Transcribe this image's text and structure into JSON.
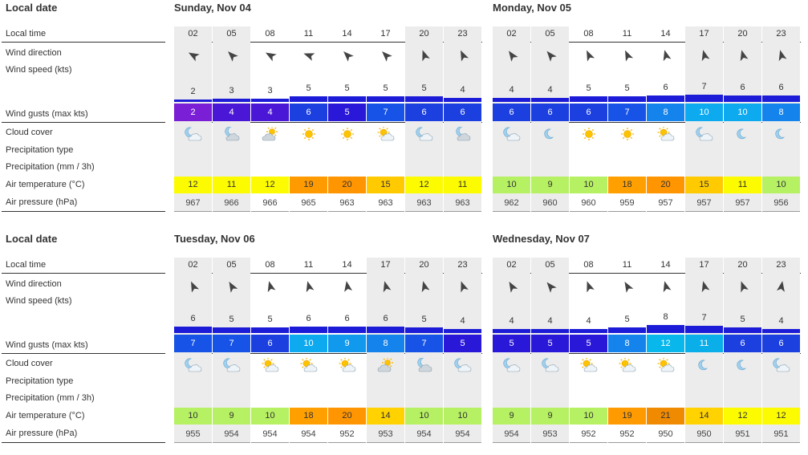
{
  "row_labels": {
    "local_date": "Local date",
    "local_time": "Local time",
    "wind_direction": "Wind direction",
    "wind_speed": "Wind speed  (kts)",
    "wind_gusts": "Wind gusts  (max kts)",
    "cloud_cover": "Cloud cover",
    "precipitation_type": "Precipitation type",
    "precipitation": "Precipitation  (mm / 3h)",
    "air_temperature": "Air temperature  (°C)",
    "air_pressure": "Air pressure  (hPa)"
  },
  "colors": {
    "gust_scale": {
      "2": "#7b1fd6",
      "4": "#4a17d6",
      "5": "#2a18d8",
      "6": "#1c3fe0",
      "7": "#1653e6",
      "8": "#1583ec",
      "9": "#1199ee",
      "10": "#0eaaf0",
      "11": "#0aaee8",
      "12": "#08b8ec"
    },
    "temp_scale": {
      "9": "#b6f063",
      "10": "#b6f063",
      "11": "#fcfb00",
      "12": "#fcfb00",
      "14": "#ffd200",
      "15": "#ffcb00",
      "18": "#ffa000",
      "19": "#ff9a00",
      "20": "#ff9500",
      "21": "#f08a00"
    },
    "wind_bar": "#1c1cd8",
    "grey_column": "#ececec"
  },
  "days": [
    {
      "title": "Sunday, Nov 04",
      "times": [
        "02",
        "05",
        "08",
        "11",
        "14",
        "17",
        "20",
        "23"
      ],
      "grey": [
        true,
        true,
        false,
        false,
        false,
        false,
        true,
        true
      ],
      "wind_dir_deg": [
        300,
        315,
        300,
        290,
        315,
        315,
        340,
        335
      ],
      "wind_speed": [
        2,
        3,
        3,
        5,
        5,
        5,
        5,
        4
      ],
      "wind_gusts": [
        2,
        4,
        4,
        6,
        5,
        7,
        6,
        6
      ],
      "cloud_icons": [
        "moon-cloud-icon",
        "moon-cloud-grey-icon",
        "sun-cloud-grey-icon",
        "sun-icon",
        "sun-icon",
        "sun-cloud-icon",
        "moon-cloud-icon",
        "moon-cloud-grey-icon"
      ],
      "air_temperature": [
        12,
        11,
        12,
        19,
        20,
        15,
        12,
        11
      ],
      "air_pressure": [
        967,
        966,
        966,
        965,
        963,
        963,
        963,
        963
      ]
    },
    {
      "title": "Monday, Nov 05",
      "times": [
        "02",
        "05",
        "08",
        "11",
        "14",
        "17",
        "20",
        "23"
      ],
      "grey": [
        true,
        true,
        false,
        false,
        false,
        true,
        true,
        true
      ],
      "wind_dir_deg": [
        325,
        320,
        335,
        335,
        345,
        345,
        345,
        345
      ],
      "wind_speed": [
        4,
        4,
        5,
        5,
        6,
        7,
        6,
        6
      ],
      "wind_gusts": [
        6,
        6,
        6,
        7,
        8,
        10,
        10,
        8
      ],
      "cloud_icons": [
        "moon-cloud-icon",
        "moon-icon",
        "sun-icon",
        "sun-icon",
        "sun-cloud-icon",
        "moon-cloud-icon",
        "moon-icon",
        "moon-icon"
      ],
      "air_temperature": [
        10,
        9,
        10,
        18,
        20,
        15,
        11,
        10
      ],
      "air_pressure": [
        962,
        960,
        960,
        959,
        957,
        957,
        957,
        956
      ]
    },
    {
      "title": "Tuesday, Nov 06",
      "times": [
        "02",
        "05",
        "08",
        "11",
        "14",
        "17",
        "20",
        "23"
      ],
      "grey": [
        true,
        true,
        false,
        false,
        false,
        true,
        true,
        true
      ],
      "wind_dir_deg": [
        335,
        330,
        345,
        345,
        350,
        345,
        345,
        340
      ],
      "wind_speed": [
        6,
        5,
        5,
        6,
        6,
        6,
        5,
        4
      ],
      "wind_gusts": [
        7,
        7,
        6,
        10,
        9,
        8,
        7,
        5
      ],
      "cloud_icons": [
        "moon-cloud-icon",
        "moon-cloud-icon",
        "sun-cloud-icon",
        "sun-cloud-icon",
        "sun-cloud-icon",
        "sun-cloud-grey-icon",
        "moon-cloud-grey-icon",
        "moon-cloud-icon"
      ],
      "air_temperature": [
        10,
        9,
        10,
        18,
        20,
        14,
        10,
        10
      ],
      "air_pressure": [
        955,
        954,
        954,
        954,
        952,
        953,
        954,
        954
      ]
    },
    {
      "title": "Wednesday, Nov 07",
      "times": [
        "02",
        "05",
        "08",
        "11",
        "14",
        "17",
        "20",
        "23"
      ],
      "grey": [
        true,
        true,
        false,
        false,
        false,
        true,
        true,
        true
      ],
      "wind_dir_deg": [
        330,
        320,
        340,
        330,
        345,
        345,
        340,
        10
      ],
      "wind_speed": [
        4,
        4,
        4,
        5,
        8,
        7,
        5,
        4
      ],
      "wind_gusts": [
        5,
        5,
        5,
        8,
        12,
        11,
        6,
        6
      ],
      "cloud_icons": [
        "moon-cloud-icon",
        "moon-cloud-icon",
        "sun-cloud-icon",
        "sun-cloud-icon",
        "sun-cloud-icon",
        "moon-icon",
        "moon-icon",
        "moon-cloud-icon"
      ],
      "air_temperature": [
        9,
        9,
        10,
        19,
        21,
        14,
        12,
        12
      ],
      "air_pressure": [
        954,
        953,
        952,
        952,
        950,
        950,
        951,
        951
      ]
    }
  ]
}
